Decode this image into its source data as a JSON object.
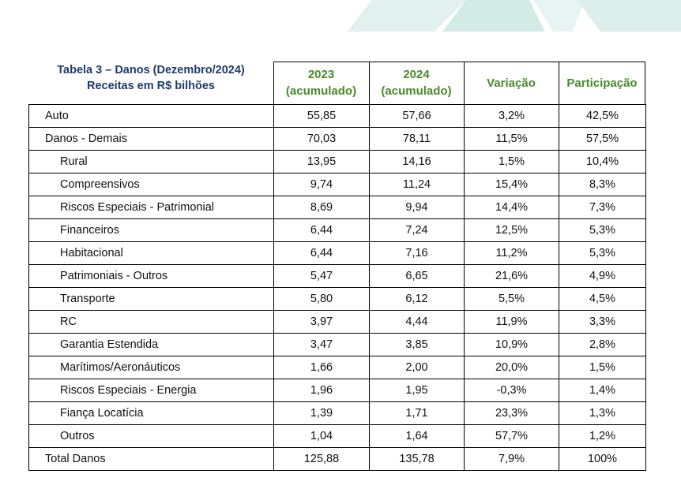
{
  "title": {
    "line1": "Tabela 3 – Danos (Dezembro/2024)",
    "line2": "Receitas em R$ bilhões"
  },
  "columns": {
    "c2023": [
      "2023",
      "(acumulado)"
    ],
    "c2024": [
      "2024",
      "(acumulado)"
    ],
    "variation": "Variação",
    "share": "Participação"
  },
  "colors": {
    "title": "#1f3a6e",
    "header": "#4a8a2a",
    "banner": "#d6ece7"
  },
  "rows": [
    {
      "label": "Auto",
      "v2023": "55,85",
      "v2024": "57,66",
      "var": "3,2%",
      "share": "42,5%"
    },
    {
      "label": "Danos - Demais",
      "v2023": "70,03",
      "v2024": "78,11",
      "var": "11,5%",
      "share": "57,5%"
    },
    {
      "label": "Rural",
      "v2023": "13,95",
      "v2024": "14,16",
      "var": "1,5%",
      "share": "10,4%",
      "sub": true
    },
    {
      "label": "Compreensivos",
      "v2023": "9,74",
      "v2024": "11,24",
      "var": "15,4%",
      "share": "8,3%",
      "sub": true
    },
    {
      "label": "Riscos Especiais - Patrimonial",
      "v2023": "8,69",
      "v2024": "9,94",
      "var": "14,4%",
      "share": "7,3%",
      "sub": true
    },
    {
      "label": "Financeiros",
      "v2023": "6,44",
      "v2024": "7,24",
      "var": "12,5%",
      "share": "5,3%",
      "sub": true
    },
    {
      "label": "Habitacional",
      "v2023": "6,44",
      "v2024": "7,16",
      "var": "11,2%",
      "share": "5,3%",
      "sub": true
    },
    {
      "label": "Patrimoniais - Outros",
      "v2023": "5,47",
      "v2024": "6,65",
      "var": "21,6%",
      "share": "4,9%",
      "sub": true
    },
    {
      "label": "Transporte",
      "v2023": "5,80",
      "v2024": "6,12",
      "var": "5,5%",
      "share": "4,5%",
      "sub": true
    },
    {
      "label": "RC",
      "v2023": "3,97",
      "v2024": "4,44",
      "var": "11,9%",
      "share": "3,3%",
      "sub": true
    },
    {
      "label": "Garantia Estendida",
      "v2023": "3,47",
      "v2024": "3,85",
      "var": "10,9%",
      "share": "2,8%",
      "sub": true
    },
    {
      "label": "Marítimos/Aeronáuticos",
      "v2023": "1,66",
      "v2024": "2,00",
      "var": "20,0%",
      "share": "1,5%",
      "sub": true
    },
    {
      "label": "Riscos Especiais - Energia",
      "v2023": "1,96",
      "v2024": "1,95",
      "var": "-0,3%",
      "share": "1,4%",
      "sub": true
    },
    {
      "label": "Fiança Locatícia",
      "v2023": "1,39",
      "v2024": "1,71",
      "var": "23,3%",
      "share": "1,3%",
      "sub": true
    },
    {
      "label": "Outros",
      "v2023": "1,04",
      "v2024": "1,64",
      "var": "57,7%",
      "share": "1,2%",
      "sub": true
    },
    {
      "label": "Total Danos",
      "v2023": "125,88",
      "v2024": "135,78",
      "var": "7,9%",
      "share": "100%"
    }
  ]
}
